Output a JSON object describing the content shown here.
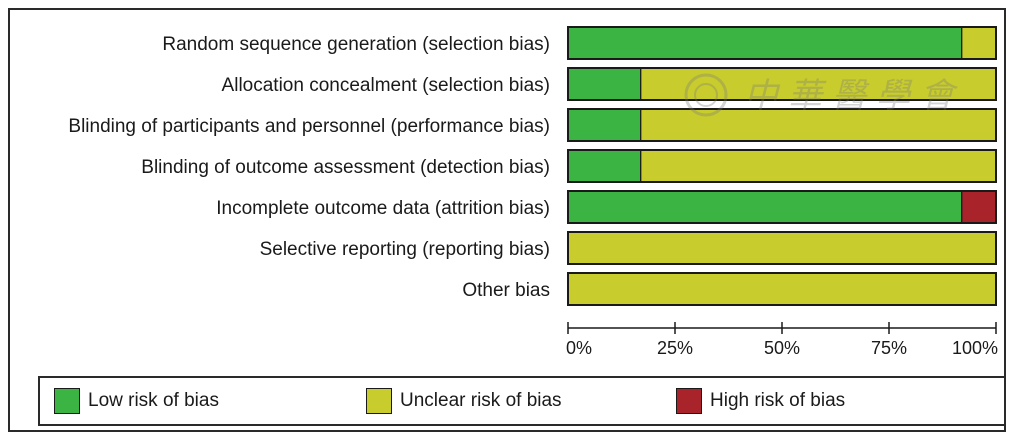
{
  "chart_data": {
    "type": "bar",
    "orientation": "horizontal",
    "stacked": true,
    "normalized": true,
    "categories": [
      "Random sequence generation (selection bias)",
      "Allocation concealment (selection bias)",
      "Blinding of participants and personnel (performance bias)",
      "Blinding of outcome assessment (detection bias)",
      "Incomplete outcome data (attrition bias)",
      "Selective reporting (reporting bias)",
      "Other bias"
    ],
    "series": [
      {
        "name": "Low risk of bias",
        "color": "#3cb444",
        "values": [
          92,
          17,
          17,
          17,
          92,
          0,
          0
        ]
      },
      {
        "name": "Unclear risk of bias",
        "color": "#c8cc2c",
        "values": [
          8,
          83,
          83,
          83,
          0,
          100,
          100
        ]
      },
      {
        "name": "High risk of bias",
        "color": "#a8232a",
        "values": [
          0,
          0,
          0,
          0,
          8,
          0,
          0
        ]
      }
    ],
    "xticks": [
      "0%",
      "25%",
      "50%",
      "75%",
      "100%"
    ],
    "xlim": [
      0,
      100
    ],
    "grid": false,
    "legend_position": "bottom"
  },
  "watermark": "中華醫學會"
}
